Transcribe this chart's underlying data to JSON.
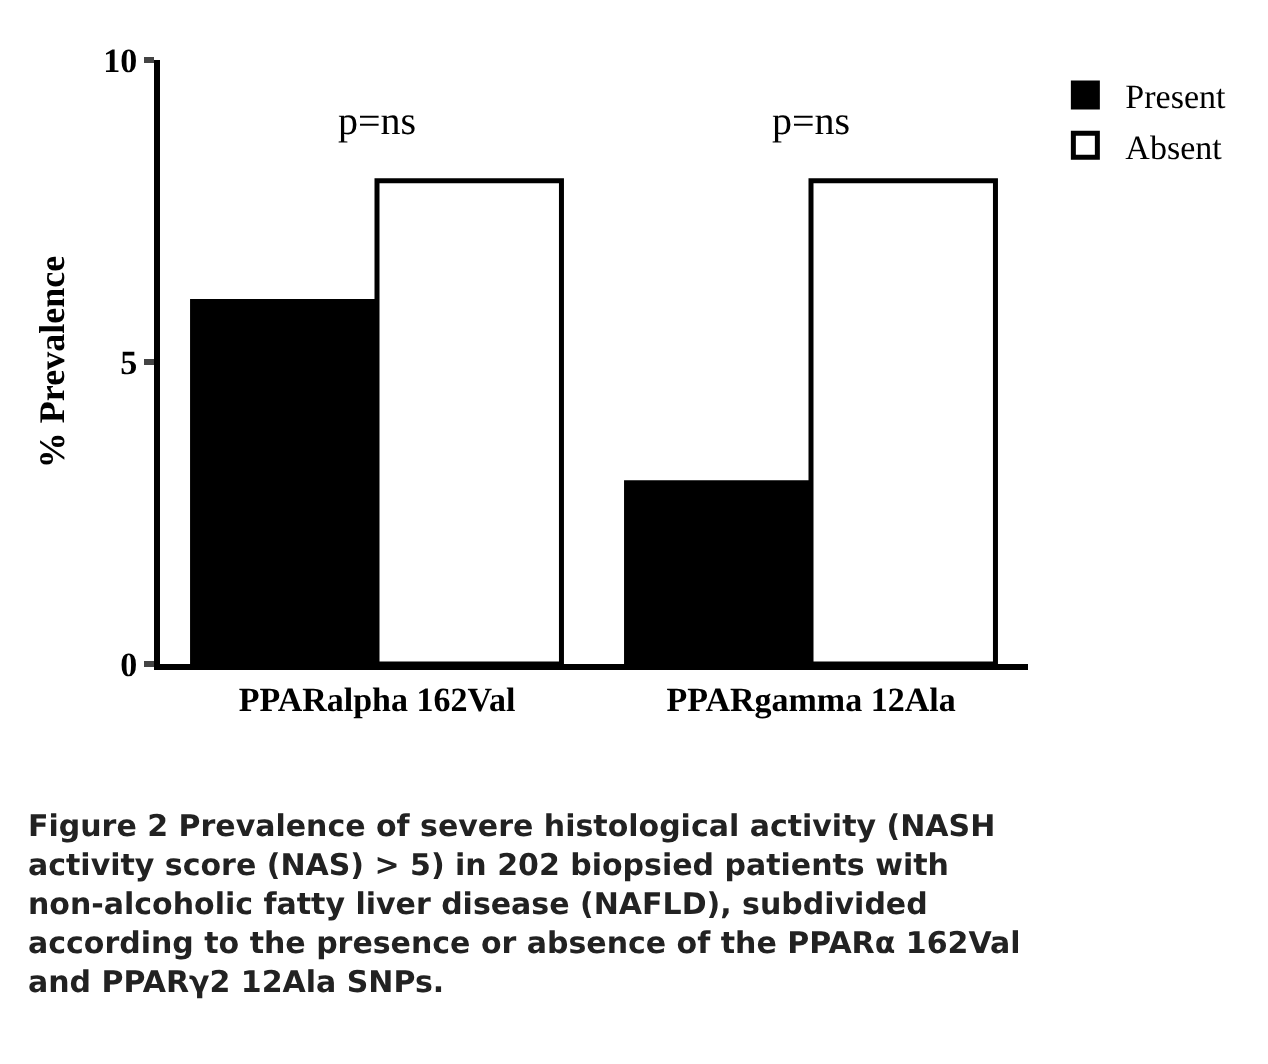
{
  "chart_data": {
    "type": "bar",
    "ylabel": "% Prevalence",
    "categories": [
      "PPARalpha 162Val",
      "PPARgamma 12Ala"
    ],
    "series": [
      {
        "name": "Present",
        "color": "#000000",
        "values": [
          6,
          3
        ]
      },
      {
        "name": "Absent",
        "color": "#ffffff",
        "values": [
          8,
          8
        ]
      }
    ],
    "ylim": [
      0,
      10
    ],
    "yticks": [
      0,
      5,
      10
    ],
    "legend": "top right",
    "annotations": [
      "p=ns",
      "p=ns",
      "Figure 2 Prevalence of severe histological activity (NASH activity score (NAS) > 5) in 202 biopsied patients with non-alcoholic fatty liver disease (NAFLD), subdivided according to the presence or absence of the PPARα 162Val and PPARγ2 12Ala SNPs."
    ]
  }
}
